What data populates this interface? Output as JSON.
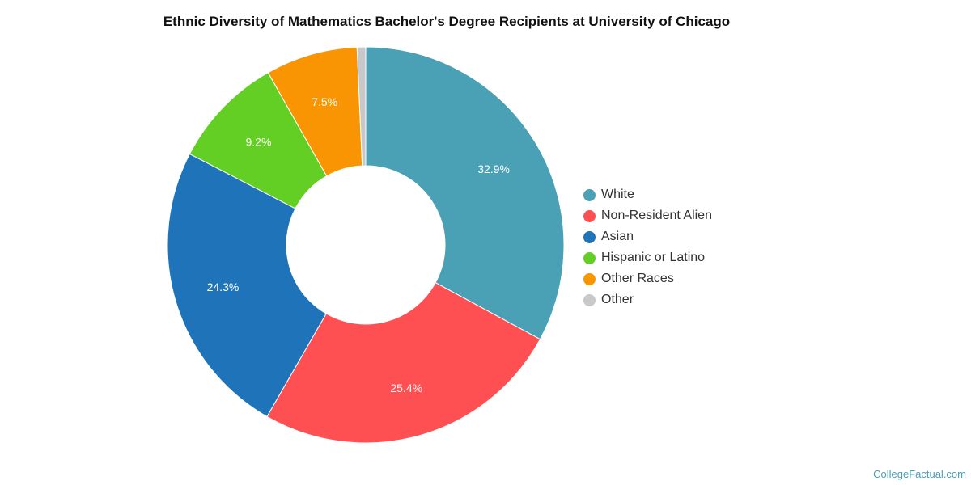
{
  "chart_data": {
    "type": "pie",
    "title": "Ethnic Diversity of Mathematics Bachelor's Degree Recipients at University of Chicago",
    "donut": true,
    "legend_position": "right",
    "slices": [
      {
        "name": "White",
        "value": 32.9,
        "label": "32.9%",
        "color": "#4aa0b4"
      },
      {
        "name": "Non-Resident Alien",
        "value": 25.4,
        "label": "25.4%",
        "color": "#fe5053"
      },
      {
        "name": "Asian",
        "value": 24.3,
        "label": "24.3%",
        "color": "#1f74b9"
      },
      {
        "name": "Hispanic or Latino",
        "value": 9.2,
        "label": "9.2%",
        "color": "#63cf24"
      },
      {
        "name": "Other Races",
        "value": 7.5,
        "label": "7.5%",
        "color": "#f99502"
      },
      {
        "name": "Other",
        "value": 0.7,
        "label": "",
        "color": "#c8c8c8"
      }
    ]
  },
  "watermark": "CollegeFactual.com"
}
